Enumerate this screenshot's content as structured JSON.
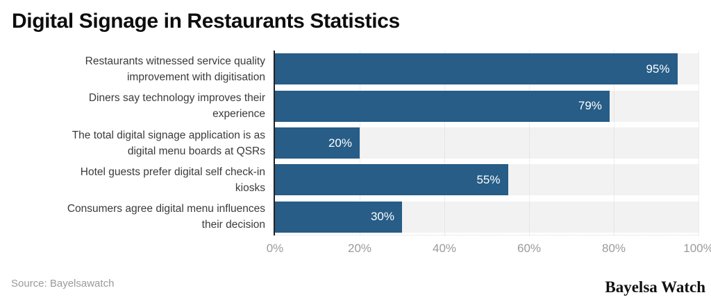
{
  "title": "Digital Signage in Restaurants Statistics",
  "source": "Source: Bayelsawatch",
  "brand": "Bayelsa Watch",
  "colors": {
    "bar": "#275d87",
    "track": "#f2f2f2",
    "gridline": "#d9d9d9",
    "axis_line": "#222222",
    "tick_text": "#9a9a9a",
    "category_text": "#3a3a3a",
    "value_text": "#ffffff"
  },
  "chart_data": {
    "type": "bar",
    "orientation": "horizontal",
    "title": "Digital Signage in Restaurants Statistics",
    "categories": [
      "Restaurants witnessed service quality improvement with digitisation",
      "Diners say technology improves their experience",
      "The total digital signage application is as digital menu boards at QSRs",
      "Hotel guests prefer digital self check-in kiosks",
      "Consumers agree digital menu influences their decision"
    ],
    "category_lines": [
      [
        "Restaurants witnessed service quality",
        "improvement with digitisation"
      ],
      [
        "Diners say technology improves their",
        "experience"
      ],
      [
        "The total digital signage application is as",
        "digital menu boards at QSRs"
      ],
      [
        "Hotel guests prefer digital self check-in",
        "kiosks"
      ],
      [
        "Consumers agree digital menu influences",
        "their decision"
      ]
    ],
    "values": [
      95,
      79,
      20,
      55,
      30
    ],
    "value_labels": [
      "95%",
      "79%",
      "20%",
      "55%",
      "30%"
    ],
    "xlabel": "",
    "ylabel": "",
    "xlim": [
      0,
      100
    ],
    "xticks": [
      {
        "value": 0,
        "label": "0%"
      },
      {
        "value": 20,
        "label": "20%"
      },
      {
        "value": 40,
        "label": "40%"
      },
      {
        "value": 60,
        "label": "60%"
      },
      {
        "value": 80,
        "label": "80%"
      },
      {
        "value": 100,
        "label": "100%"
      }
    ],
    "grid": "vertical-dotted",
    "legend": "none",
    "value_label_position": "inside-end"
  }
}
